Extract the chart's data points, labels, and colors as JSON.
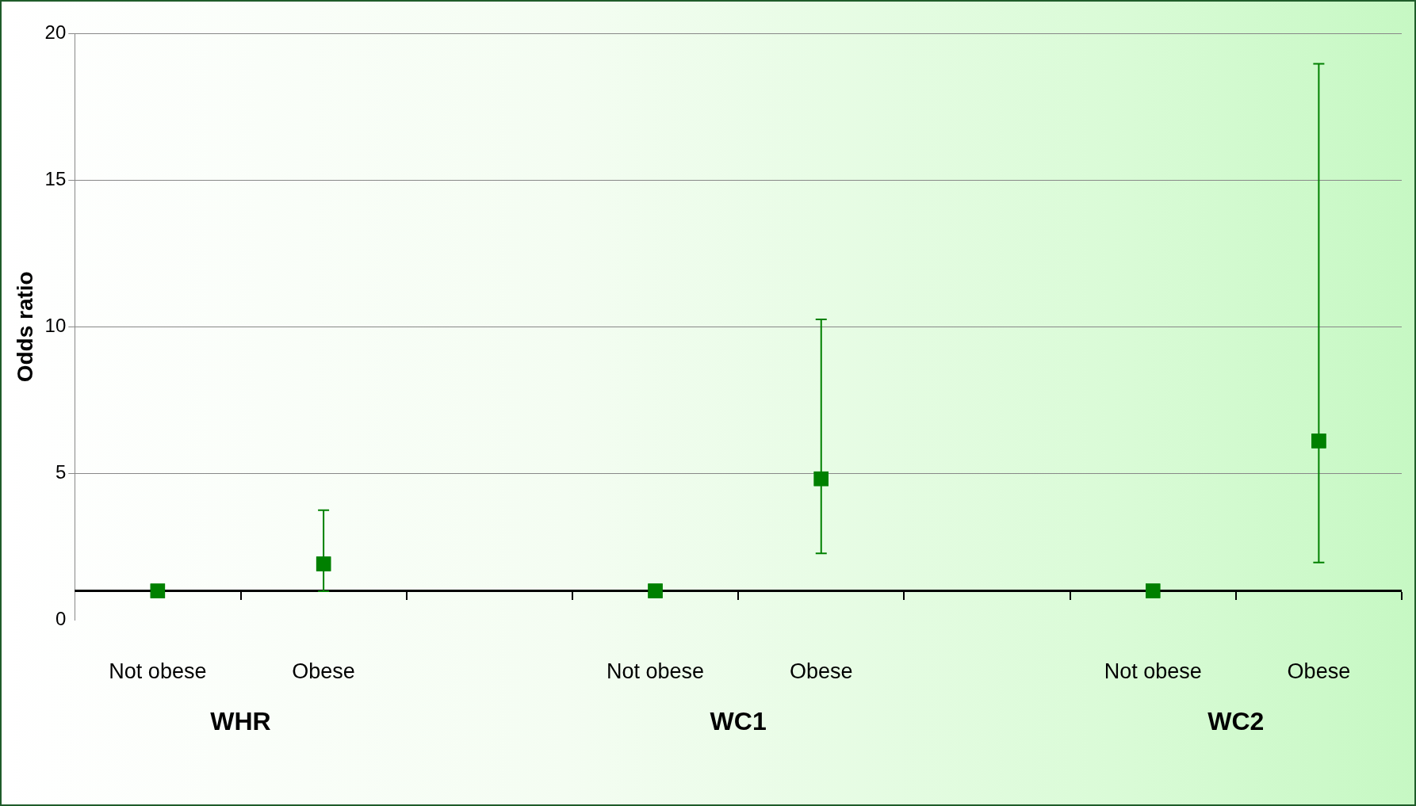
{
  "chart_data": {
    "type": "scatter",
    "ylabel": "Odds ratio",
    "categories": [
      "Not obese",
      "Obese",
      null,
      "Not obese",
      "Obese",
      null,
      "Not obese",
      "Obese"
    ],
    "values": [
      1,
      1.92,
      null,
      1,
      4.82,
      null,
      1,
      6.11
    ],
    "errors": [
      null,
      [
        0.99,
        3.75
      ],
      null,
      null,
      [
        2.28,
        10.25
      ],
      null,
      null,
      [
        1.97,
        18.96
      ]
    ],
    "color": "#008000",
    "marker": "square",
    "ylim": [
      0,
      20
    ],
    "yticks": [
      0,
      5,
      10,
      15,
      20
    ],
    "grid": "y",
    "legend": false,
    "ref_lines": [
      {
        "axis": "y",
        "value": 1,
        "color": "#000000"
      }
    ],
    "annotations": [
      "WHR",
      "WC1",
      "WC2"
    ]
  }
}
